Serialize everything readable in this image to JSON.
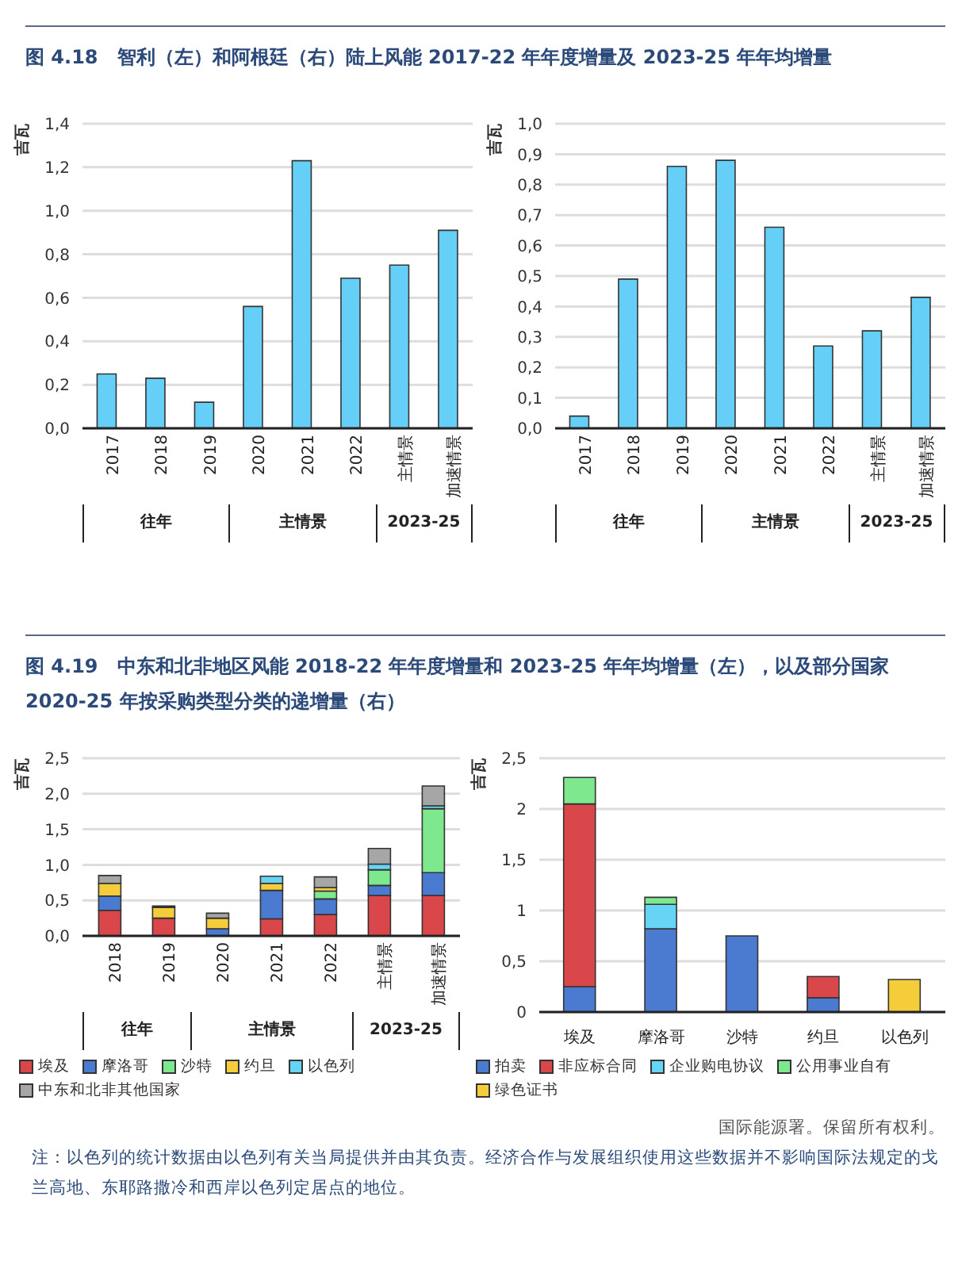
{
  "chart_data": [
    {
      "type": "bar",
      "title": "图 4.18　智利（左）和阿根廷（右）陆上风能 2017-22 年年度增量及 2023-25 年年均增量",
      "ylabel": "吉瓦",
      "categories": [
        "2017",
        "2018",
        "2019",
        "2020",
        "2021",
        "2022",
        "主情景",
        "加速情景"
      ],
      "values": [
        0.25,
        0.23,
        0.12,
        0.56,
        1.23,
        0.69,
        0.75,
        0.91
      ],
      "color": "#66cff7",
      "ylim": [
        0,
        1.4
      ],
      "yticks": [
        {
          "value": 0,
          "label": "0,0"
        },
        {
          "value": 0.2,
          "label": "0,2"
        },
        {
          "value": 0.4,
          "label": "0,4"
        },
        {
          "value": 0.6,
          "label": "0,6"
        },
        {
          "value": 0.8,
          "label": "0,8"
        },
        {
          "value": 1.0,
          "label": "1,0"
        },
        {
          "value": 1.2,
          "label": "1,2"
        },
        {
          "value": 1.4,
          "label": "1,4"
        }
      ],
      "grid": "y",
      "annotations": [
        "往年",
        "主情景",
        "2023-25"
      ]
    },
    {
      "type": "bar",
      "ylabel": "吉瓦",
      "categories": [
        "2017",
        "2018",
        "2019",
        "2020",
        "2021",
        "2022",
        "主情景",
        "加速情景"
      ],
      "values": [
        0.04,
        0.49,
        0.86,
        0.88,
        0.66,
        0.27,
        0.32,
        0.43
      ],
      "color": "#66cff7",
      "ylim": [
        0,
        1.0
      ],
      "yticks": [
        {
          "value": 0,
          "label": "0,0"
        },
        {
          "value": 0.1,
          "label": "0,1"
        },
        {
          "value": 0.2,
          "label": "0,2"
        },
        {
          "value": 0.3,
          "label": "0,3"
        },
        {
          "value": 0.4,
          "label": "0,4"
        },
        {
          "value": 0.5,
          "label": "0,5"
        },
        {
          "value": 0.6,
          "label": "0,6"
        },
        {
          "value": 0.7,
          "label": "0,7"
        },
        {
          "value": 0.8,
          "label": "0,8"
        },
        {
          "value": 0.9,
          "label": "0,9"
        },
        {
          "value": 1.0,
          "label": "1,0"
        }
      ],
      "grid": "y",
      "annotations": [
        "往年",
        "主情景",
        "2023-25"
      ]
    },
    {
      "type": "bar",
      "title": "图 4.19　中东和北非地区风能 2018-22 年年度增量和 2023-25 年年均增量（左），以及部分国家 2020-25 年按采购类型分类的递增量（右）",
      "ylabel": "吉瓦",
      "categories": [
        "2018",
        "2019",
        "2020",
        "2021",
        "2022",
        "主情景",
        "加速情景"
      ],
      "series": [
        {
          "name": "埃及",
          "color": "#d9474a",
          "values": [
            0.36,
            0.25,
            0,
            0.24,
            0.3,
            0.57,
            0.57
          ]
        },
        {
          "name": "摩洛哥",
          "color": "#4a7bd0",
          "values": [
            0.2,
            0,
            0.1,
            0.4,
            0.22,
            0.14,
            0.32
          ]
        },
        {
          "name": "沙特",
          "color": "#7ee88e",
          "values": [
            0,
            0,
            0,
            0,
            0.11,
            0.22,
            0.9
          ]
        },
        {
          "name": "约旦",
          "color": "#f5cc3a",
          "values": [
            0.18,
            0.15,
            0.15,
            0.1,
            0.05,
            0,
            0
          ]
        },
        {
          "name": "以色列",
          "color": "#66d4f5",
          "values": [
            0,
            0,
            0,
            0.1,
            null,
            0.08,
            0.04
          ]
        },
        {
          "name": "中东和北非其他国家",
          "color": "#a6a6a6",
          "values": [
            0.11,
            0.02,
            0.07,
            null,
            0.15,
            0.22,
            0.28
          ]
        }
      ],
      "stacked": true,
      "ylim": [
        0,
        2.5
      ],
      "yticks": [
        {
          "value": 0,
          "label": "0,0"
        },
        {
          "value": 0.5,
          "label": "0,5"
        },
        {
          "value": 1.0,
          "label": "1,0"
        },
        {
          "value": 1.5,
          "label": "1,5"
        },
        {
          "value": 2.0,
          "label": "2,0"
        },
        {
          "value": 2.5,
          "label": "2,5"
        }
      ],
      "grid": "y",
      "legend": "bottom",
      "annotations": [
        "往年",
        "主情景",
        "2023-25"
      ]
    },
    {
      "type": "bar",
      "ylabel": "吉瓦",
      "categories": [
        "埃及",
        "摩洛哥",
        "沙特",
        "约旦",
        "以色列"
      ],
      "series": [
        {
          "name": "拍卖",
          "color": "#4a7bd0",
          "values": [
            0.25,
            0.82,
            0.75,
            0.14,
            0
          ]
        },
        {
          "name": "非应标合同",
          "color": "#d9474a",
          "values": [
            1.8,
            0,
            0,
            0.21,
            0
          ]
        },
        {
          "name": "企业购电协议",
          "color": "#66d4f5",
          "values": [
            0,
            0.24,
            0,
            0,
            0
          ]
        },
        {
          "name": "公用事业自有",
          "color": "#7ee88e",
          "values": [
            0.26,
            0.07,
            0,
            0,
            0
          ]
        },
        {
          "name": "绿色证书",
          "color": "#f5cc3a",
          "values": [
            0,
            0,
            0,
            0,
            0.32
          ]
        }
      ],
      "stacked": true,
      "ylim": [
        0,
        2.5
      ],
      "yticks": [
        {
          "value": 0,
          "label": "0"
        },
        {
          "value": 0.5,
          "label": "0,5"
        },
        {
          "value": 1,
          "label": "1"
        },
        {
          "value": 1.5,
          "label": "1,5"
        },
        {
          "value": 2,
          "label": "2"
        },
        {
          "value": 2.5,
          "label": "2,5"
        }
      ],
      "grid": "y",
      "legend": "bottom",
      "annotations": [
        "国际能源署。保留所有权利。",
        "注：以色列的统计数据由以色列有关当局提供并由其负责。经济合作与发展组织使用这些数据并不影响国际法规定的戈兰高地、东耶路撒冷和西岸以色列定居点的地位。"
      ]
    }
  ]
}
